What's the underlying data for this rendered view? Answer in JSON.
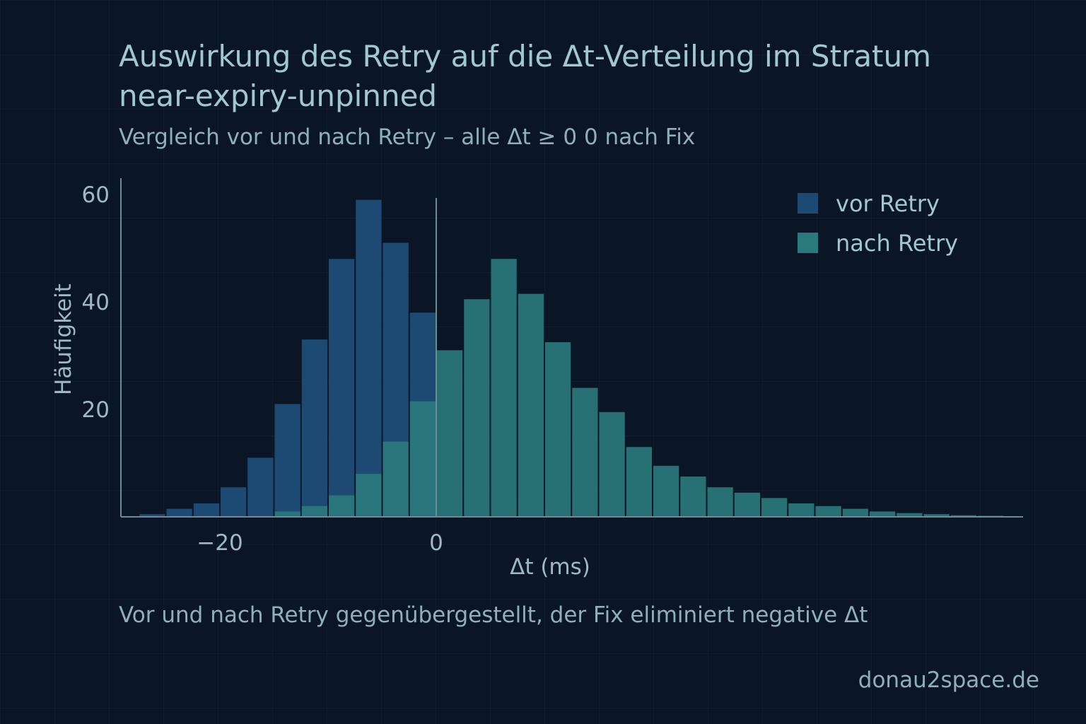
{
  "header": {
    "title": "Auswirkung des Retry auf die Δt-Verteilung im Stratum near-expiry-unpinned",
    "subtitle": "Vergleich vor und nach Retry – alle Δt ≥ 0 0 nach Fix"
  },
  "footer": {
    "caption": "Vor und nach Retry gegenübergestellt, der Fix eliminiert negative Δt",
    "brand": "donau2space.de"
  },
  "colors": {
    "before": "#1d4a73",
    "after": "#2a7a7c",
    "axis": "#6e8a98",
    "background": "#0a1626"
  },
  "chart_data": {
    "type": "bar",
    "title": "Auswirkung des Retry auf die Δt-Verteilung im Stratum near-expiry-unpinned",
    "subtitle": "Vergleich vor und nach Retry – alle Δt ≥ 0 0 nach Fix",
    "xlabel": "Δt (ms)",
    "ylabel": "Häufigkeit",
    "xlim": [
      -28,
      54
    ],
    "ylim": [
      0,
      65
    ],
    "bin_width": 2.5,
    "x_ticks": [
      {
        "value": -20,
        "label": "−20"
      },
      {
        "value": 0,
        "label": "0"
      }
    ],
    "y_ticks": [
      {
        "value": 20,
        "label": "20"
      },
      {
        "value": 40,
        "label": "40"
      },
      {
        "value": 60,
        "label": "60"
      }
    ],
    "reference_line_x": 0,
    "legend": "top-right",
    "grid": false,
    "series": [
      {
        "name": "vor Retry",
        "bins": [
          {
            "x0": -27.5,
            "x1": -25,
            "value": 0.5
          },
          {
            "x0": -25,
            "x1": -22.5,
            "value": 1.5
          },
          {
            "x0": -22.5,
            "x1": -20,
            "value": 2.5
          },
          {
            "x0": -20,
            "x1": -17.5,
            "value": 5.5
          },
          {
            "x0": -17.5,
            "x1": -15,
            "value": 11
          },
          {
            "x0": -15,
            "x1": -12.5,
            "value": 21
          },
          {
            "x0": -12.5,
            "x1": -10,
            "value": 33
          },
          {
            "x0": -10,
            "x1": -7.5,
            "value": 48
          },
          {
            "x0": -7.5,
            "x1": -5,
            "value": 59
          },
          {
            "x0": -5,
            "x1": -2.5,
            "value": 51
          },
          {
            "x0": -2.5,
            "x1": 0,
            "value": 38
          }
        ]
      },
      {
        "name": "nach Retry",
        "bins": [
          {
            "x0": -15,
            "x1": -12.5,
            "value": 1
          },
          {
            "x0": -12.5,
            "x1": -10,
            "value": 2
          },
          {
            "x0": -10,
            "x1": -7.5,
            "value": 4
          },
          {
            "x0": -7.5,
            "x1": -5,
            "value": 8
          },
          {
            "x0": -5,
            "x1": -2.5,
            "value": 14
          },
          {
            "x0": -2.5,
            "x1": 0,
            "value": 21.5
          },
          {
            "x0": 0,
            "x1": 2.5,
            "value": 31
          },
          {
            "x0": 2.5,
            "x1": 5,
            "value": 40.5
          },
          {
            "x0": 5,
            "x1": 7.5,
            "value": 48
          },
          {
            "x0": 7.5,
            "x1": 10,
            "value": 41.5
          },
          {
            "x0": 10,
            "x1": 12.5,
            "value": 32.5
          },
          {
            "x0": 12.5,
            "x1": 15,
            "value": 24
          },
          {
            "x0": 15,
            "x1": 17.5,
            "value": 19.5
          },
          {
            "x0": 17.5,
            "x1": 20,
            "value": 13
          },
          {
            "x0": 20,
            "x1": 22.5,
            "value": 9.5
          },
          {
            "x0": 22.5,
            "x1": 25,
            "value": 7.5
          },
          {
            "x0": 25,
            "x1": 27.5,
            "value": 5.5
          },
          {
            "x0": 27.5,
            "x1": 30,
            "value": 4.5
          },
          {
            "x0": 30,
            "x1": 32.5,
            "value": 3.5
          },
          {
            "x0": 32.5,
            "x1": 35,
            "value": 2.5
          },
          {
            "x0": 35,
            "x1": 37.5,
            "value": 2
          },
          {
            "x0": 37.5,
            "x1": 40,
            "value": 1.5
          },
          {
            "x0": 40,
            "x1": 42.5,
            "value": 1
          },
          {
            "x0": 42.5,
            "x1": 45,
            "value": 0.7
          },
          {
            "x0": 45,
            "x1": 47.5,
            "value": 0.5
          },
          {
            "x0": 47.5,
            "x1": 50,
            "value": 0.3
          },
          {
            "x0": 50,
            "x1": 52.5,
            "value": 0.2
          }
        ]
      }
    ]
  }
}
